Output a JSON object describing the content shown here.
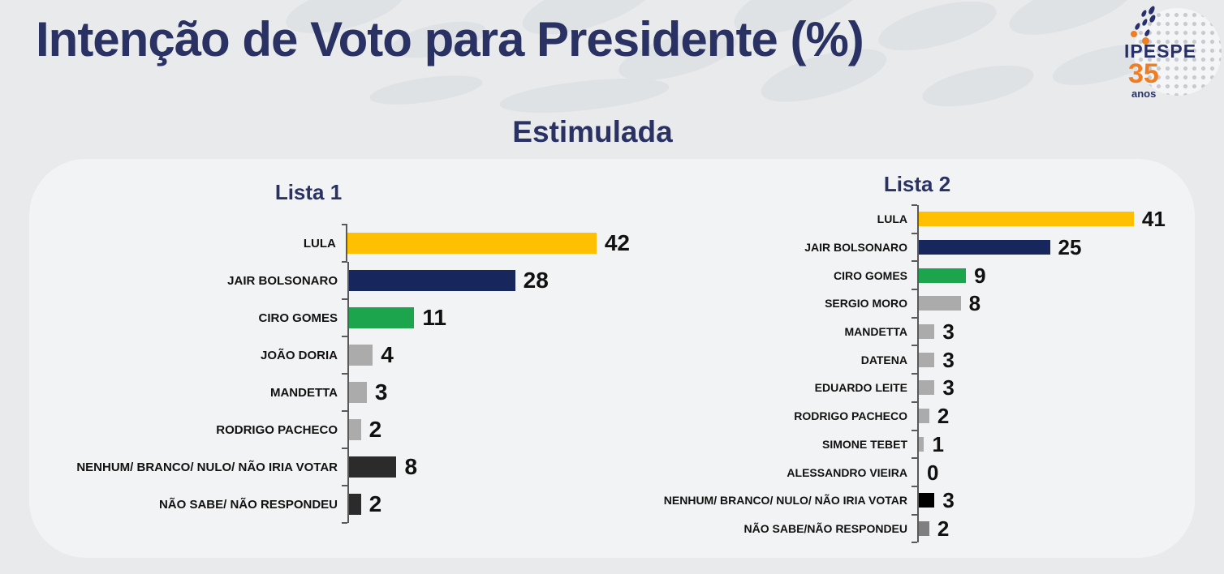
{
  "header": {
    "title": "Intenção de Voto para Presidente (%)",
    "subtitle": "Estimulada"
  },
  "logo": {
    "name": "IPESPE",
    "years": "35",
    "years_unit": "anos"
  },
  "colors": {
    "page_background": "#e9eaec",
    "panel_background": "#f2f3f4",
    "heading_navy": "#2a3163",
    "axis_gray": "#595959",
    "logo_orange": "#ef7d23",
    "bar_gold": "#ffc002",
    "bar_navy": "#17265d",
    "bar_green": "#1ca54d",
    "bar_gray": "#ababab",
    "bar_dark": "#2b2b2b",
    "bar_black": "#000000",
    "bar_medium_gray": "#7f7f7f"
  },
  "chart_data": [
    {
      "type": "bar",
      "orientation": "horizontal",
      "title": "Lista 1",
      "categories": [
        "LULA",
        "JAIR BOLSONARO",
        "CIRO GOMES",
        "JOÃO DORIA",
        "MANDETTA",
        "RODRIGO PACHECO",
        "NENHUM/ BRANCO/ NULO/ NÃO IRIA VOTAR",
        "NÃO SABE/ NÃO RESPONDEU"
      ],
      "values": [
        42,
        28,
        11,
        4,
        3,
        2,
        8,
        2
      ],
      "bar_colors": [
        "#ffc002",
        "#17265d",
        "#1ca54d",
        "#ababab",
        "#ababab",
        "#ababab",
        "#2b2b2b",
        "#2b2b2b"
      ],
      "xlim": [
        0,
        45
      ],
      "grid": false,
      "value_labels": "end-of-bar"
    },
    {
      "type": "bar",
      "orientation": "horizontal",
      "title": "Lista 2",
      "categories": [
        "LULA",
        "JAIR BOLSONARO",
        "CIRO GOMES",
        "SERGIO MORO",
        "MANDETTA",
        "DATENA",
        "EDUARDO LEITE",
        "RODRIGO PACHECO",
        "SIMONE TEBET",
        "ALESSANDRO VIEIRA",
        "NENHUM/ BRANCO/ NULO/ NÃO IRIA VOTAR",
        "NÃO SABE/NÃO RESPONDEU"
      ],
      "values": [
        41,
        25,
        9,
        8,
        3,
        3,
        3,
        2,
        1,
        0,
        3,
        2
      ],
      "bar_colors": [
        "#ffc002",
        "#17265d",
        "#1ca54d",
        "#ababab",
        "#ababab",
        "#ababab",
        "#ababab",
        "#ababab",
        "#ababab",
        "#ababab",
        "#000000",
        "#7f7f7f"
      ],
      "xlim": [
        0,
        45
      ],
      "grid": false,
      "value_labels": "end-of-bar"
    }
  ]
}
